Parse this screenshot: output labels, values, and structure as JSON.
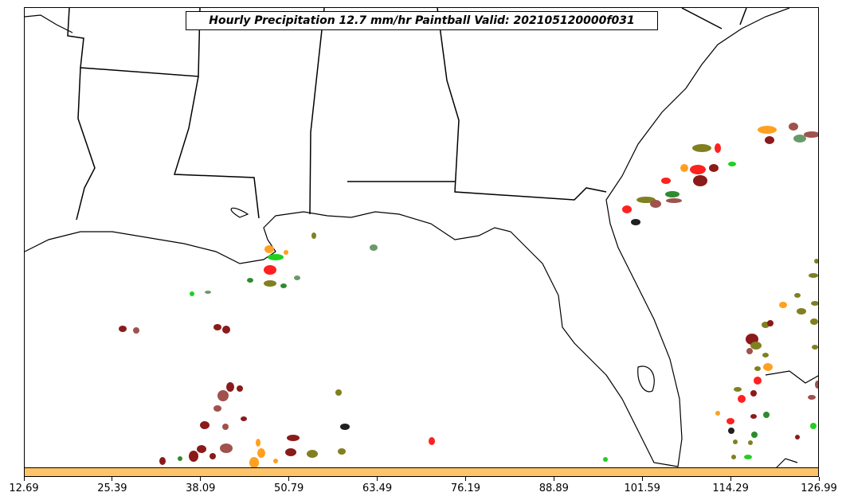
{
  "title": "Hourly Precipitation 12.7 mm/hr Paintball Valid: 202105120000f031",
  "colorbar": {
    "color": "#ffc46a",
    "ticks": [
      "12.69",
      "25.39",
      "38.09",
      "50.79",
      "63.49",
      "76.19",
      "88.89",
      "101.59",
      "114.29",
      "126.99"
    ]
  },
  "map": {
    "region": "US Gulf Coast and Florida",
    "land_color": "#ffffff",
    "boundary_color": "#000000"
  },
  "paintball_colors": [
    "#8b1a1a",
    "#a0524d",
    "#ff2020",
    "#ffa020",
    "#808020",
    "#2e8b2e",
    "#20d020",
    "#202020",
    "#6a9a6a"
  ]
}
